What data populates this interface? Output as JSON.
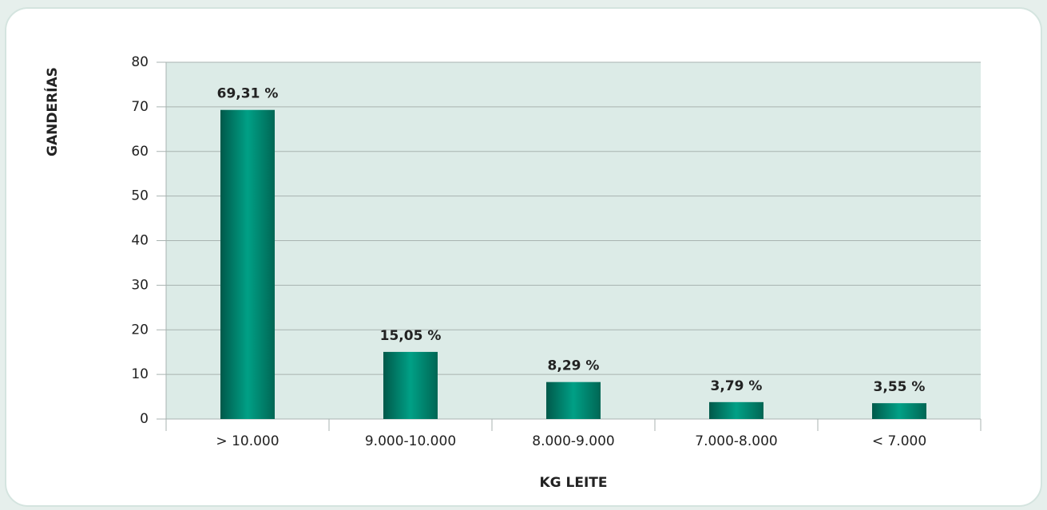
{
  "chart_data": {
    "type": "bar",
    "x_label": "KG LEITE",
    "y_label": "GANDERÍAS",
    "categories": [
      "> 10.000",
      "9.000-10.000",
      "8.000-9.000",
      "7.000-8.000",
      "< 7.000"
    ],
    "values": [
      69.31,
      15.05,
      8.29,
      3.79,
      3.55
    ],
    "value_labels": [
      "69,31 %",
      "15,05 %",
      "8,29 %",
      "3,79 %",
      "3,55 %"
    ],
    "color": "#00927a",
    "ylim": [
      0,
      80
    ],
    "yticks": [
      0,
      10,
      20,
      30,
      40,
      50,
      60,
      70,
      80
    ],
    "grid": true
  }
}
